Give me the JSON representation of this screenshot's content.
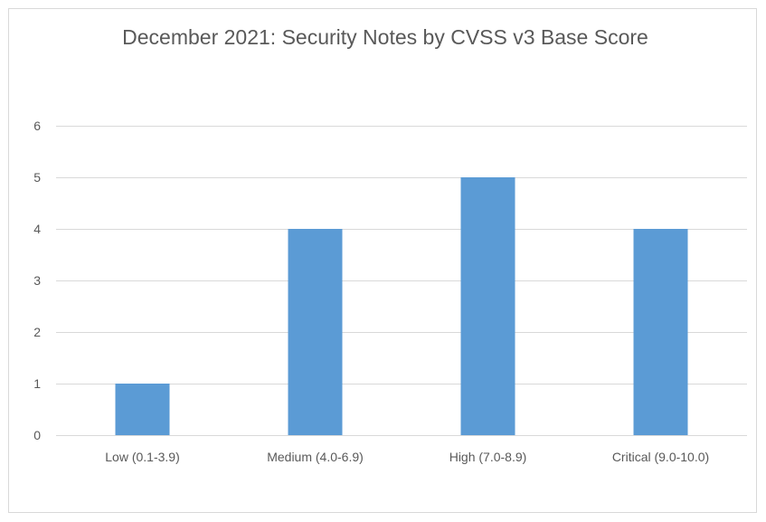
{
  "chart_data": {
    "type": "bar",
    "title": "December 2021: Security Notes by CVSS v3 Base Score",
    "xlabel": "",
    "ylabel": "",
    "categories": [
      "Low (0.1-3.9)",
      "Medium (4.0-6.9)",
      "High (7.0-8.9)",
      "Critical (9.0-10.0)"
    ],
    "values": [
      1,
      4,
      5,
      4
    ],
    "ylim": [
      0,
      6
    ],
    "yticks": [
      "0",
      "1",
      "2",
      "3",
      "4",
      "5",
      "6"
    ],
    "grid": true,
    "legend": "none"
  },
  "colors": {
    "bar": "#5b9bd5",
    "grid": "#d9d9d9",
    "axis": "#d9d9d9",
    "text": "#595959"
  }
}
